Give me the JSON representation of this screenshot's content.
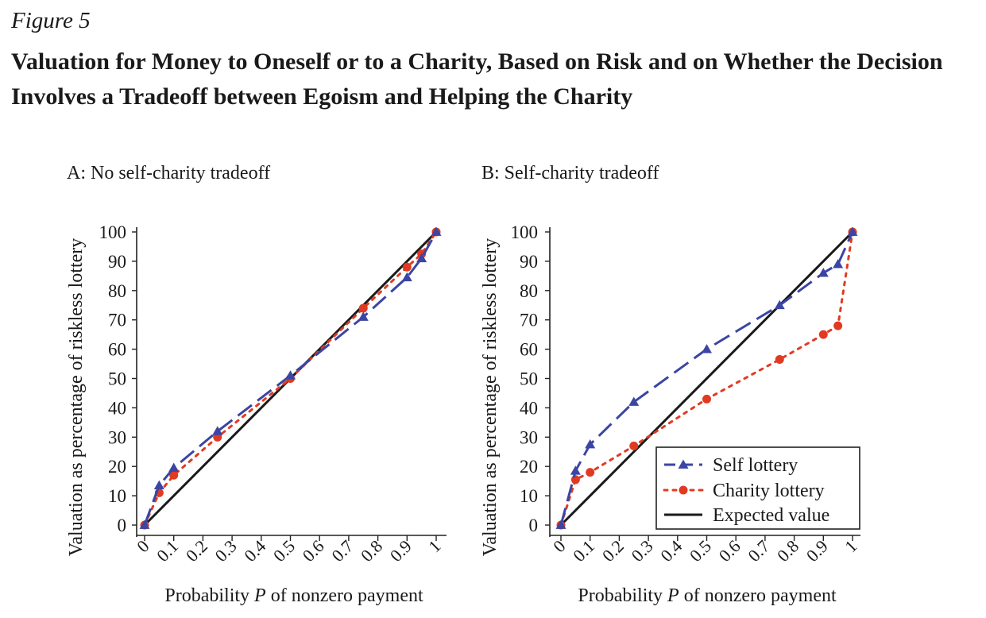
{
  "figure": {
    "label": "Figure 5",
    "title": "Valuation for Money to Oneself or to a Charity, Based on Risk and on Whether the Decision Involves a Tradeoff between Egoism and Helping the Charity"
  },
  "colors": {
    "self": "#3b45a3",
    "charity": "#e03b22",
    "expected": "#1a1a1a",
    "axis": "#222222"
  },
  "chart_data": [
    {
      "type": "line",
      "title": "A: No self-charity tradeoff",
      "xlabel_parts": [
        "Probability ",
        "P",
        " of nonzero payment"
      ],
      "ylabel": "Valuation as percentage of riskless lottery",
      "xlim": [
        0,
        1
      ],
      "ylim": [
        0,
        100
      ],
      "xticks": [
        0,
        0.1,
        0.2,
        0.3,
        0.4,
        0.5,
        0.6,
        0.7,
        0.8,
        0.9,
        1
      ],
      "xtick_labels": [
        "0",
        "0.1",
        "0.2",
        "0.3",
        "0.4",
        "0.5",
        "0.6",
        "0.7",
        "0.8",
        "0.9",
        "1"
      ],
      "yticks": [
        0,
        10,
        20,
        30,
        40,
        50,
        60,
        70,
        80,
        90,
        100
      ],
      "legend": null,
      "series": [
        {
          "name": "Self lottery",
          "style": "dashed",
          "marker": "triangle",
          "color": "#3b45a3",
          "x": [
            0,
            0.05,
            0.1,
            0.25,
            0.5,
            0.75,
            0.9,
            0.95,
            1
          ],
          "y": [
            0,
            13.5,
            19.5,
            32,
            51,
            71,
            84.5,
            91,
            100
          ]
        },
        {
          "name": "Charity lottery",
          "style": "dotted",
          "marker": "circle",
          "color": "#e03b22",
          "x": [
            0,
            0.05,
            0.1,
            0.25,
            0.5,
            0.75,
            0.9,
            0.95,
            1
          ],
          "y": [
            0,
            11,
            17,
            30,
            50,
            74,
            88,
            92.5,
            100
          ]
        },
        {
          "name": "Expected value",
          "style": "solid",
          "marker": "none",
          "color": "#1a1a1a",
          "x": [
            0,
            1
          ],
          "y": [
            0,
            100
          ]
        }
      ]
    },
    {
      "type": "line",
      "title": "B: Self-charity tradeoff",
      "xlabel_parts": [
        "Probability ",
        "P",
        " of nonzero payment"
      ],
      "ylabel": "Valuation as percentage of riskless lottery",
      "xlim": [
        0,
        1
      ],
      "ylim": [
        0,
        100
      ],
      "xticks": [
        0,
        0.1,
        0.2,
        0.3,
        0.4,
        0.5,
        0.6,
        0.7,
        0.8,
        0.9,
        1
      ],
      "xtick_labels": [
        "0",
        "0.1",
        "0.2",
        "0.3",
        "0.4",
        "0.5",
        "0.6",
        "0.7",
        "0.8",
        "0.9",
        "1"
      ],
      "yticks": [
        0,
        10,
        20,
        30,
        40,
        50,
        60,
        70,
        80,
        90,
        100
      ],
      "legend": "bottom-right",
      "series": [
        {
          "name": "Self lottery",
          "style": "dashed",
          "marker": "triangle",
          "color": "#3b45a3",
          "x": [
            0,
            0.05,
            0.1,
            0.25,
            0.5,
            0.75,
            0.9,
            0.95,
            1
          ],
          "y": [
            0,
            18.5,
            27.5,
            42,
            60,
            75,
            86,
            89,
            100
          ]
        },
        {
          "name": "Charity lottery",
          "style": "dotted",
          "marker": "circle",
          "color": "#e03b22",
          "x": [
            0,
            0.05,
            0.1,
            0.25,
            0.5,
            0.75,
            0.9,
            0.95,
            1
          ],
          "y": [
            0,
            15.5,
            18,
            27,
            43,
            56.5,
            65,
            68,
            100
          ]
        },
        {
          "name": "Expected value",
          "style": "solid",
          "marker": "none",
          "color": "#1a1a1a",
          "x": [
            0,
            1
          ],
          "y": [
            0,
            100
          ]
        }
      ]
    }
  ]
}
